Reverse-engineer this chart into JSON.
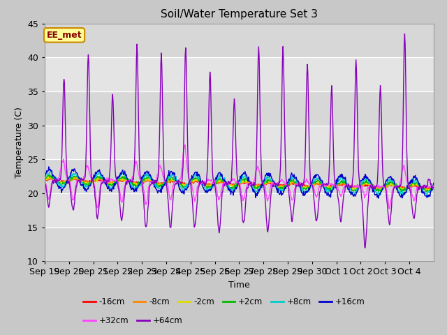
{
  "title": "Soil/Water Temperature Set 3",
  "xlabel": "Time",
  "ylabel": "Temperature (C)",
  "ylim": [
    10,
    45
  ],
  "yticks": [
    10,
    15,
    20,
    25,
    30,
    35,
    40,
    45
  ],
  "fig_bg": "#c8c8c8",
  "plot_bg": "#e0e0e0",
  "series": [
    {
      "label": "-16cm",
      "color": "#ff0000",
      "lw": 1.0
    },
    {
      "label": "-8cm",
      "color": "#ff8800",
      "lw": 1.0
    },
    {
      "label": "-2cm",
      "color": "#dddd00",
      "lw": 1.0
    },
    {
      "label": "+2cm",
      "color": "#00bb00",
      "lw": 1.0
    },
    {
      "label": "+8cm",
      "color": "#00cccc",
      "lw": 1.0
    },
    {
      "label": "+16cm",
      "color": "#0000cc",
      "lw": 1.0
    },
    {
      "label": "+32cm",
      "color": "#ff44ff",
      "lw": 1.0
    },
    {
      "label": "+64cm",
      "color": "#8800bb",
      "lw": 1.0
    }
  ],
  "xtick_labels": [
    "Sep 19",
    "Sep 20",
    "Sep 21",
    "Sep 22",
    "Sep 23",
    "Sep 24",
    "Sep 25",
    "Sep 26",
    "Sep 27",
    "Sep 28",
    "Sep 29",
    "Sep 30",
    "Oct 1",
    "Oct 2",
    "Oct 3",
    "Oct 4"
  ],
  "n_days": 16,
  "pts_per_day": 48,
  "annotation_text": "EE_met",
  "annotation_bg": "#ffff99",
  "annotation_border": "#cc8800",
  "annotation_text_color": "#880000",
  "spike64_heights": [
    37,
    40.5,
    34.5,
    41.5,
    40.5,
    41.5,
    38,
    34,
    41.5,
    41.5,
    39,
    35.5,
    39.5,
    36,
    43.5,
    22
  ],
  "spike64_troughs": [
    18,
    17.5,
    16.5,
    16,
    15,
    15,
    15,
    14.5,
    15.5,
    14.5,
    16,
    16,
    16,
    12,
    15.5,
    16
  ],
  "spike32_heights": [
    25,
    24,
    22,
    24.5,
    24,
    27,
    22,
    22,
    24,
    22,
    22,
    21.5,
    21,
    21,
    24,
    21
  ],
  "spike32_troughs": [
    19,
    19,
    18,
    18.5,
    18.5,
    19,
    19,
    19,
    19,
    19,
    19,
    19.5,
    19.5,
    19.5,
    18,
    19
  ]
}
